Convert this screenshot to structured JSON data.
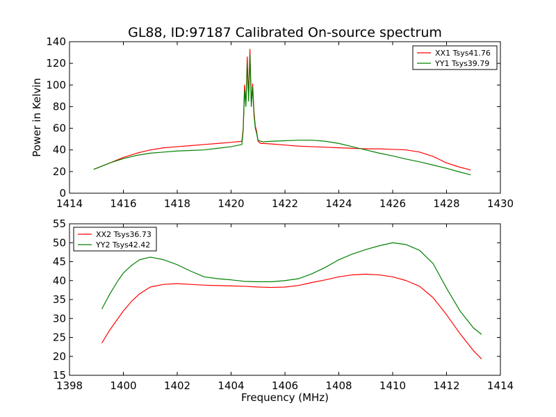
{
  "figure_title": "GL88, ID:97187 Calibrated On-source spectrum",
  "colors": {
    "xx": "#ff0000",
    "yy": "#008000",
    "axes": "#000000",
    "background": "#ffffff"
  },
  "chart_data": [
    {
      "type": "line",
      "title": "GL88, ID:97187 Calibrated On-source spectrum",
      "xlabel": "",
      "ylabel": "Power in Kelvin",
      "xlim": [
        1414,
        1430
      ],
      "ylim": [
        0,
        140
      ],
      "xticks": [
        "1414",
        "1416",
        "1418",
        "1420",
        "1422",
        "1424",
        "1426",
        "1428",
        "1430"
      ],
      "yticks": [
        "0",
        "20",
        "40",
        "60",
        "80",
        "100",
        "120",
        "140"
      ],
      "grid": false,
      "legend_position": "upper right",
      "series": [
        {
          "name": "XX1 Tsys41.76",
          "color": "#ff0000",
          "x": [
            1414.9,
            1415.2,
            1415.5,
            1416.0,
            1416.5,
            1417.0,
            1417.5,
            1418.0,
            1418.5,
            1419.0,
            1419.5,
            1420.0,
            1420.4,
            1420.45,
            1420.5,
            1420.55,
            1420.6,
            1420.65,
            1420.7,
            1420.75,
            1420.8,
            1420.85,
            1420.9,
            1420.95,
            1421.0,
            1421.1,
            1421.2,
            1421.5,
            1422.0,
            1422.5,
            1423.0,
            1423.5,
            1424.0,
            1424.5,
            1425.0,
            1425.5,
            1426.0,
            1426.5,
            1427.0,
            1427.5,
            1428.0,
            1428.5,
            1428.9
          ],
          "y": [
            22,
            25,
            28,
            33,
            37,
            40,
            42,
            43,
            44,
            45,
            46,
            47,
            48,
            60,
            100,
            82,
            126,
            88,
            133,
            84,
            101,
            75,
            62,
            57,
            48,
            46,
            46,
            45.5,
            44.5,
            43.5,
            43,
            42.5,
            42,
            41.5,
            41,
            41,
            40.5,
            40,
            38,
            34,
            28,
            24,
            21.5
          ]
        },
        {
          "name": "YY1 Tsys39.79",
          "color": "#008000",
          "x": [
            1414.9,
            1415.2,
            1415.5,
            1416.0,
            1416.5,
            1417.0,
            1417.5,
            1418.0,
            1418.5,
            1419.0,
            1419.5,
            1420.0,
            1420.4,
            1420.45,
            1420.5,
            1420.55,
            1420.6,
            1420.65,
            1420.7,
            1420.75,
            1420.8,
            1420.85,
            1420.9,
            1420.95,
            1421.0,
            1421.1,
            1421.2,
            1421.5,
            1422.0,
            1422.5,
            1423.0,
            1423.5,
            1424.0,
            1424.5,
            1425.0,
            1425.5,
            1426.0,
            1426.5,
            1427.0,
            1427.5,
            1428.0,
            1428.5,
            1428.9
          ],
          "y": [
            22,
            25,
            28,
            32,
            35,
            37,
            38,
            39,
            39.5,
            40,
            41.5,
            43,
            45,
            58,
            95,
            80,
            120,
            85,
            128,
            80,
            98,
            72,
            60,
            55,
            49,
            48,
            47.5,
            48,
            48.5,
            49,
            49,
            48,
            46,
            43,
            40,
            37,
            34.5,
            31.5,
            29,
            26,
            23,
            19.5,
            17
          ]
        }
      ]
    },
    {
      "type": "line",
      "title": "",
      "xlabel": "Frequency (MHz)",
      "ylabel": "",
      "xlim": [
        1398,
        1414
      ],
      "ylim": [
        15,
        55
      ],
      "xticks": [
        "1398",
        "1400",
        "1402",
        "1404",
        "1406",
        "1408",
        "1410",
        "1412",
        "1414"
      ],
      "yticks": [
        "15",
        "20",
        "25",
        "30",
        "35",
        "40",
        "45",
        "50",
        "55"
      ],
      "grid": false,
      "legend_position": "upper left",
      "series": [
        {
          "name": "XX2 Tsys36.73",
          "color": "#ff0000",
          "x": [
            1399.2,
            1399.5,
            1399.8,
            1400.0,
            1400.3,
            1400.6,
            1401.0,
            1401.5,
            1402.0,
            1402.5,
            1403.0,
            1403.5,
            1404.0,
            1404.5,
            1405.0,
            1405.5,
            1406.0,
            1406.5,
            1407.0,
            1407.5,
            1408.0,
            1408.5,
            1409.0,
            1409.5,
            1410.0,
            1410.5,
            1411.0,
            1411.5,
            1412.0,
            1412.5,
            1413.0,
            1413.3
          ],
          "y": [
            23.5,
            27,
            30,
            32,
            34.5,
            36.5,
            38.3,
            39,
            39.2,
            39,
            38.8,
            38.7,
            38.6,
            38.5,
            38.3,
            38.2,
            38.3,
            38.7,
            39.5,
            40.2,
            41,
            41.5,
            41.7,
            41.5,
            41,
            40,
            38.5,
            35.5,
            31,
            26,
            21.5,
            19.3
          ]
        },
        {
          "name": "YY2 Tsys42.42",
          "color": "#008000",
          "x": [
            1399.2,
            1399.5,
            1399.8,
            1400.0,
            1400.3,
            1400.6,
            1401.0,
            1401.5,
            1402.0,
            1402.5,
            1403.0,
            1403.5,
            1404.0,
            1404.5,
            1405.0,
            1405.5,
            1406.0,
            1406.5,
            1407.0,
            1407.5,
            1408.0,
            1408.5,
            1409.0,
            1409.5,
            1410.0,
            1410.5,
            1411.0,
            1411.5,
            1412.0,
            1412.5,
            1413.0,
            1413.3
          ],
          "y": [
            32.5,
            36.5,
            40,
            42,
            44,
            45.5,
            46.2,
            45.5,
            44.2,
            42.5,
            41,
            40.5,
            40.2,
            39.8,
            39.7,
            39.7,
            40,
            40.5,
            41.8,
            43.5,
            45.5,
            47,
            48.2,
            49.2,
            50,
            49.5,
            48,
            44.5,
            38,
            32,
            27.5,
            25.8
          ]
        }
      ]
    }
  ]
}
